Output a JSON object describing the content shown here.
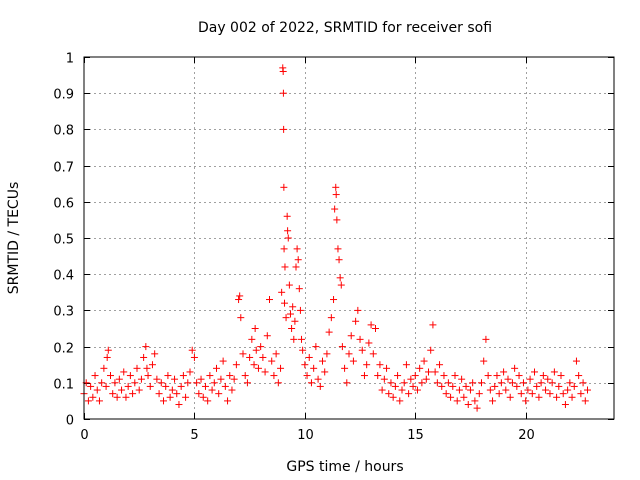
{
  "chart_data": {
    "type": "scatter",
    "title": "Day 002 of 2022, SRMTID for receiver sofi",
    "xlabel": "GPS time / hours",
    "ylabel": "SRMTID / TECUs",
    "xlim": [
      0,
      24
    ],
    "ylim": [
      0,
      1
    ],
    "xticks": [
      0,
      5,
      10,
      15,
      20
    ],
    "xtick_labels": [
      "0",
      "5",
      "10",
      "15",
      "20"
    ],
    "yticks": [
      0,
      0.1,
      0.2,
      0.3,
      0.4,
      0.5,
      0.6,
      0.7,
      0.8,
      0.9,
      1
    ],
    "ytick_labels": [
      "0",
      "0.1",
      "0.2",
      "0.3",
      "0.4",
      "0.5",
      "0.6",
      "0.7",
      "0.8",
      "0.9",
      "1"
    ],
    "grid": true,
    "marker": "+",
    "marker_color": "#ff0000",
    "series": [
      {
        "name": "SRMTID",
        "points": [
          [
            0.0,
            0.07
          ],
          [
            0.1,
            0.1
          ],
          [
            0.2,
            0.05
          ],
          [
            0.3,
            0.09
          ],
          [
            0.4,
            0.06
          ],
          [
            0.5,
            0.12
          ],
          [
            0.6,
            0.08
          ],
          [
            0.7,
            0.05
          ],
          [
            0.8,
            0.1
          ],
          [
            0.9,
            0.14
          ],
          [
            1.0,
            0.09
          ],
          [
            1.05,
            0.17
          ],
          [
            1.1,
            0.19
          ],
          [
            1.2,
            0.12
          ],
          [
            1.3,
            0.07
          ],
          [
            1.4,
            0.1
          ],
          [
            1.5,
            0.06
          ],
          [
            1.6,
            0.11
          ],
          [
            1.7,
            0.08
          ],
          [
            1.8,
            0.13
          ],
          [
            1.9,
            0.06
          ],
          [
            2.0,
            0.09
          ],
          [
            2.1,
            0.12
          ],
          [
            2.2,
            0.07
          ],
          [
            2.3,
            0.1
          ],
          [
            2.4,
            0.14
          ],
          [
            2.5,
            0.08
          ],
          [
            2.6,
            0.11
          ],
          [
            2.7,
            0.17
          ],
          [
            2.8,
            0.2
          ],
          [
            2.85,
            0.14
          ],
          [
            2.9,
            0.12
          ],
          [
            3.0,
            0.09
          ],
          [
            3.1,
            0.15
          ],
          [
            3.2,
            0.18
          ],
          [
            3.3,
            0.11
          ],
          [
            3.4,
            0.07
          ],
          [
            3.5,
            0.1
          ],
          [
            3.6,
            0.05
          ],
          [
            3.7,
            0.09
          ],
          [
            3.8,
            0.12
          ],
          [
            3.9,
            0.06
          ],
          [
            4.0,
            0.08
          ],
          [
            4.1,
            0.11
          ],
          [
            4.2,
            0.07
          ],
          [
            4.3,
            0.04
          ],
          [
            4.4,
            0.09
          ],
          [
            4.5,
            0.12
          ],
          [
            4.6,
            0.06
          ],
          [
            4.7,
            0.1
          ],
          [
            4.8,
            0.13
          ],
          [
            4.9,
            0.19
          ],
          [
            5.0,
            0.17
          ],
          [
            5.1,
            0.1
          ],
          [
            5.2,
            0.07
          ],
          [
            5.3,
            0.11
          ],
          [
            5.4,
            0.06
          ],
          [
            5.5,
            0.09
          ],
          [
            5.6,
            0.05
          ],
          [
            5.7,
            0.12
          ],
          [
            5.8,
            0.08
          ],
          [
            5.9,
            0.1
          ],
          [
            6.0,
            0.14
          ],
          [
            6.1,
            0.07
          ],
          [
            6.2,
            0.11
          ],
          [
            6.3,
            0.16
          ],
          [
            6.4,
            0.09
          ],
          [
            6.5,
            0.05
          ],
          [
            6.6,
            0.12
          ],
          [
            6.7,
            0.08
          ],
          [
            6.8,
            0.11
          ],
          [
            6.9,
            0.15
          ],
          [
            7.0,
            0.33
          ],
          [
            7.05,
            0.34
          ],
          [
            7.1,
            0.28
          ],
          [
            7.2,
            0.18
          ],
          [
            7.3,
            0.12
          ],
          [
            7.4,
            0.1
          ],
          [
            7.5,
            0.17
          ],
          [
            7.6,
            0.22
          ],
          [
            7.7,
            0.15
          ],
          [
            7.75,
            0.25
          ],
          [
            7.8,
            0.19
          ],
          [
            7.9,
            0.14
          ],
          [
            8.0,
            0.2
          ],
          [
            8.1,
            0.17
          ],
          [
            8.2,
            0.13
          ],
          [
            8.3,
            0.23
          ],
          [
            8.4,
            0.33
          ],
          [
            8.5,
            0.16
          ],
          [
            8.6,
            0.12
          ],
          [
            8.7,
            0.18
          ],
          [
            8.8,
            0.1
          ],
          [
            8.9,
            0.14
          ],
          [
            8.95,
            0.35
          ],
          [
            9.0,
            0.97
          ],
          [
            9.02,
            0.96
          ],
          [
            9.03,
            0.9
          ],
          [
            9.04,
            0.8
          ],
          [
            9.05,
            0.64
          ],
          [
            9.06,
            0.47
          ],
          [
            9.08,
            0.32
          ],
          [
            9.1,
            0.42
          ],
          [
            9.15,
            0.28
          ],
          [
            9.2,
            0.56
          ],
          [
            9.22,
            0.52
          ],
          [
            9.25,
            0.5
          ],
          [
            9.3,
            0.37
          ],
          [
            9.35,
            0.29
          ],
          [
            9.4,
            0.25
          ],
          [
            9.45,
            0.31
          ],
          [
            9.5,
            0.22
          ],
          [
            9.55,
            0.27
          ],
          [
            9.6,
            0.42
          ],
          [
            9.65,
            0.47
          ],
          [
            9.7,
            0.44
          ],
          [
            9.75,
            0.36
          ],
          [
            9.8,
            0.3
          ],
          [
            9.85,
            0.22
          ],
          [
            9.9,
            0.19
          ],
          [
            10.0,
            0.15
          ],
          [
            10.1,
            0.12
          ],
          [
            10.2,
            0.17
          ],
          [
            10.3,
            0.1
          ],
          [
            10.4,
            0.14
          ],
          [
            10.5,
            0.2
          ],
          [
            10.6,
            0.11
          ],
          [
            10.7,
            0.09
          ],
          [
            10.8,
            0.16
          ],
          [
            10.9,
            0.13
          ],
          [
            11.0,
            0.18
          ],
          [
            11.1,
            0.24
          ],
          [
            11.2,
            0.28
          ],
          [
            11.3,
            0.33
          ],
          [
            11.35,
            0.58
          ],
          [
            11.4,
            0.64
          ],
          [
            11.42,
            0.62
          ],
          [
            11.45,
            0.55
          ],
          [
            11.5,
            0.47
          ],
          [
            11.55,
            0.44
          ],
          [
            11.6,
            0.39
          ],
          [
            11.65,
            0.37
          ],
          [
            11.7,
            0.2
          ],
          [
            11.8,
            0.14
          ],
          [
            11.9,
            0.1
          ],
          [
            12.0,
            0.18
          ],
          [
            12.1,
            0.23
          ],
          [
            12.2,
            0.16
          ],
          [
            12.3,
            0.27
          ],
          [
            12.4,
            0.3
          ],
          [
            12.5,
            0.22
          ],
          [
            12.6,
            0.19
          ],
          [
            12.7,
            0.12
          ],
          [
            12.8,
            0.15
          ],
          [
            12.9,
            0.21
          ],
          [
            13.0,
            0.26
          ],
          [
            13.1,
            0.18
          ],
          [
            13.2,
            0.25
          ],
          [
            13.3,
            0.12
          ],
          [
            13.4,
            0.15
          ],
          [
            13.5,
            0.08
          ],
          [
            13.6,
            0.11
          ],
          [
            13.7,
            0.14
          ],
          [
            13.8,
            0.07
          ],
          [
            13.9,
            0.1
          ],
          [
            14.0,
            0.06
          ],
          [
            14.1,
            0.09
          ],
          [
            14.2,
            0.12
          ],
          [
            14.3,
            0.05
          ],
          [
            14.4,
            0.08
          ],
          [
            14.5,
            0.1
          ],
          [
            14.6,
            0.15
          ],
          [
            14.7,
            0.07
          ],
          [
            14.8,
            0.11
          ],
          [
            14.9,
            0.09
          ],
          [
            15.0,
            0.12
          ],
          [
            15.1,
            0.08
          ],
          [
            15.2,
            0.14
          ],
          [
            15.3,
            0.1
          ],
          [
            15.4,
            0.16
          ],
          [
            15.5,
            0.11
          ],
          [
            15.6,
            0.13
          ],
          [
            15.7,
            0.19
          ],
          [
            15.8,
            0.26
          ],
          [
            15.9,
            0.13
          ],
          [
            16.0,
            0.1
          ],
          [
            16.1,
            0.15
          ],
          [
            16.2,
            0.09
          ],
          [
            16.3,
            0.12
          ],
          [
            16.4,
            0.07
          ],
          [
            16.5,
            0.1
          ],
          [
            16.6,
            0.06
          ],
          [
            16.7,
            0.09
          ],
          [
            16.8,
            0.12
          ],
          [
            16.9,
            0.05
          ],
          [
            17.0,
            0.08
          ],
          [
            17.1,
            0.11
          ],
          [
            17.2,
            0.06
          ],
          [
            17.3,
            0.09
          ],
          [
            17.4,
            0.04
          ],
          [
            17.5,
            0.08
          ],
          [
            17.6,
            0.1
          ],
          [
            17.7,
            0.05
          ],
          [
            17.8,
            0.03
          ],
          [
            17.9,
            0.07
          ],
          [
            18.0,
            0.1
          ],
          [
            18.1,
            0.16
          ],
          [
            18.2,
            0.22
          ],
          [
            18.3,
            0.12
          ],
          [
            18.4,
            0.08
          ],
          [
            18.5,
            0.05
          ],
          [
            18.6,
            0.09
          ],
          [
            18.7,
            0.12
          ],
          [
            18.8,
            0.07
          ],
          [
            18.9,
            0.1
          ],
          [
            19.0,
            0.13
          ],
          [
            19.1,
            0.08
          ],
          [
            19.2,
            0.11
          ],
          [
            19.3,
            0.06
          ],
          [
            19.4,
            0.1
          ],
          [
            19.5,
            0.14
          ],
          [
            19.6,
            0.09
          ],
          [
            19.7,
            0.12
          ],
          [
            19.8,
            0.07
          ],
          [
            19.9,
            0.1
          ],
          [
            20.0,
            0.05
          ],
          [
            20.1,
            0.08
          ],
          [
            20.2,
            0.11
          ],
          [
            20.3,
            0.07
          ],
          [
            20.4,
            0.13
          ],
          [
            20.5,
            0.09
          ],
          [
            20.6,
            0.06
          ],
          [
            20.7,
            0.1
          ],
          [
            20.8,
            0.12
          ],
          [
            20.9,
            0.08
          ],
          [
            21.0,
            0.11
          ],
          [
            21.1,
            0.07
          ],
          [
            21.2,
            0.1
          ],
          [
            21.3,
            0.13
          ],
          [
            21.4,
            0.06
          ],
          [
            21.5,
            0.09
          ],
          [
            21.6,
            0.12
          ],
          [
            21.7,
            0.07
          ],
          [
            21.8,
            0.04
          ],
          [
            21.9,
            0.08
          ],
          [
            22.0,
            0.1
          ],
          [
            22.1,
            0.06
          ],
          [
            22.2,
            0.09
          ],
          [
            22.3,
            0.16
          ],
          [
            22.4,
            0.12
          ],
          [
            22.5,
            0.07
          ],
          [
            22.6,
            0.1
          ],
          [
            22.7,
            0.05
          ],
          [
            22.8,
            0.08
          ]
        ]
      }
    ]
  }
}
